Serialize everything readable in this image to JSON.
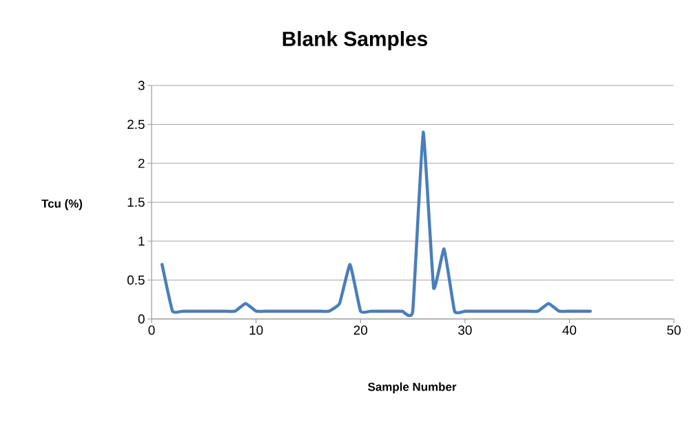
{
  "chart_data": {
    "type": "line",
    "title": "Blank Samples",
    "xlabel": "Sample Number",
    "ylabel": "Tcu (%)",
    "x": [
      1,
      2,
      3,
      4,
      5,
      6,
      7,
      8,
      9,
      10,
      11,
      12,
      13,
      14,
      15,
      16,
      17,
      18,
      19,
      20,
      21,
      22,
      23,
      24,
      25,
      26,
      27,
      28,
      29,
      30,
      31,
      32,
      33,
      34,
      35,
      36,
      37,
      38,
      39,
      40,
      41,
      42
    ],
    "series": [
      {
        "color": "#4a7ebb",
        "values": [
          0.7,
          0.1,
          0.1,
          0.1,
          0.1,
          0.1,
          0.1,
          0.1,
          0.2,
          0.1,
          0.1,
          0.1,
          0.1,
          0.1,
          0.1,
          0.1,
          0.1,
          0.2,
          0.7,
          0.1,
          0.1,
          0.1,
          0.1,
          0.1,
          0.1,
          2.4,
          0.4,
          0.9,
          0.1,
          0.1,
          0.1,
          0.1,
          0.1,
          0.1,
          0.1,
          0.1,
          0.1,
          0.2,
          0.1,
          0.1,
          0.1,
          0.1
        ]
      }
    ],
    "xlim": [
      0,
      50
    ],
    "xticks": [
      0,
      10,
      20,
      30,
      40,
      50
    ],
    "ylim": [
      0,
      3
    ],
    "yticks": [
      0,
      0.5,
      1,
      1.5,
      2,
      2.5,
      3
    ],
    "grid": "y",
    "marker": "none",
    "line_style": "solid"
  }
}
